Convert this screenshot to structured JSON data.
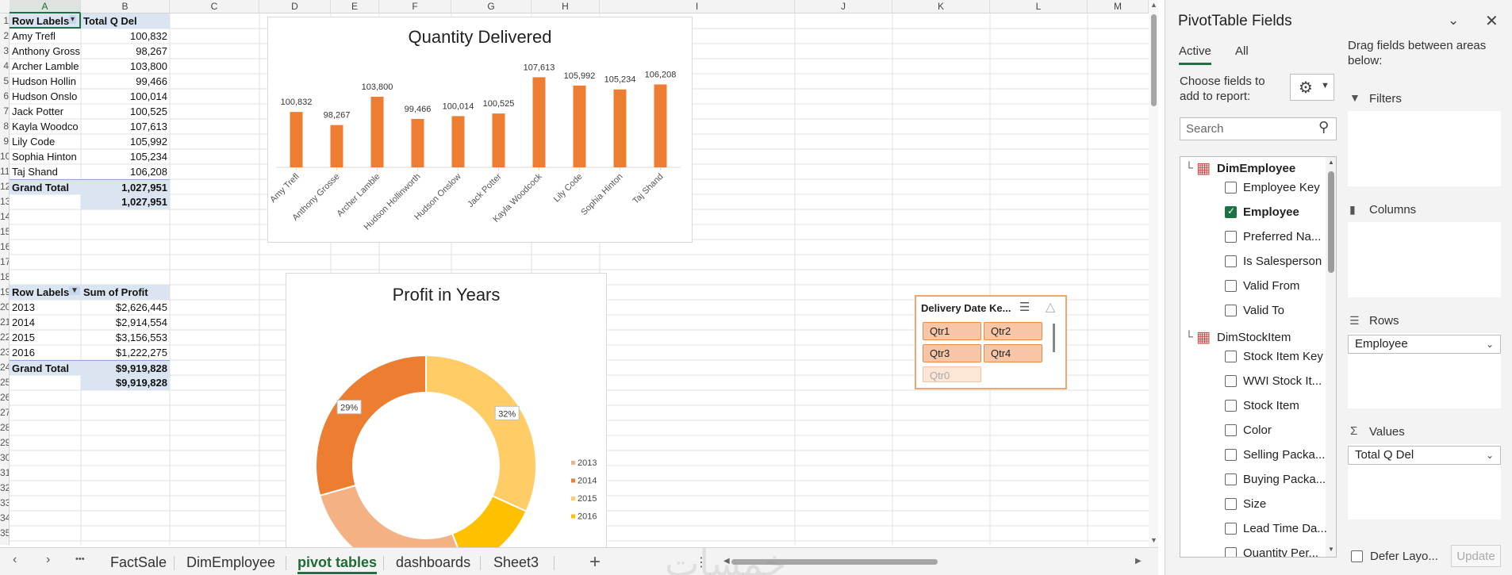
{
  "columns": [
    "A",
    "B",
    "C",
    "D",
    "E",
    "F",
    "G",
    "H",
    "I",
    "J",
    "K",
    "L",
    "M"
  ],
  "row_numbers": [
    "1",
    "2",
    "3",
    "4",
    "5",
    "6",
    "7",
    "8",
    "9",
    "10",
    "11",
    "12",
    "13",
    "14",
    "15",
    "16",
    "17",
    "18",
    "19",
    "20",
    "21",
    "22",
    "23",
    "24",
    "25",
    "26",
    "27",
    "28",
    "29",
    "30",
    "31",
    "32",
    "33",
    "34",
    "35"
  ],
  "pivot1": {
    "header_row_labels": "Row Labels",
    "header_value": "Total Q Del",
    "rows": [
      {
        "label": "Amy Trefl",
        "value": "100,832"
      },
      {
        "label": "Anthony Gross",
        "value": "98,267"
      },
      {
        "label": "Archer Lamble",
        "value": "103,800"
      },
      {
        "label": "Hudson Hollin",
        "value": "99,466"
      },
      {
        "label": "Hudson Onslo",
        "value": "100,014"
      },
      {
        "label": "Jack Potter",
        "value": "100,525"
      },
      {
        "label": "Kayla Woodco",
        "value": "107,613"
      },
      {
        "label": "Lily Code",
        "value": "105,992"
      },
      {
        "label": "Sophia Hinton",
        "value": "105,234"
      },
      {
        "label": "Taj Shand",
        "value": "106,208"
      }
    ],
    "grand_total_label": "Grand Total",
    "grand_total": "1,027,951",
    "extra_total": "1,027,951"
  },
  "pivot2": {
    "header_row_labels": "Row Labels",
    "header_value": "Sum of Profit",
    "rows": [
      {
        "label": "2013",
        "value": "$2,626,445"
      },
      {
        "label": "2014",
        "value": "$2,914,554"
      },
      {
        "label": "2015",
        "value": "$3,156,553"
      },
      {
        "label": "2016",
        "value": "$1,222,275"
      }
    ],
    "grand_total_label": "Grand Total",
    "grand_total": "$9,919,828",
    "extra_total": "$9,919,828"
  },
  "chart_data": [
    {
      "type": "bar",
      "title": "Quantity Delivered",
      "categories": [
        "Amy Trefl",
        "Anthony Grosse",
        "Archer Lamble",
        "Hudson Hollinworth",
        "Hudson Onslow",
        "Jack Potter",
        "Kayla Woodcock",
        "Lily Code",
        "Sophia Hinton",
        "Taj Shand"
      ],
      "values": [
        100832,
        98267,
        103800,
        99466,
        100014,
        100525,
        107613,
        105992,
        105234,
        106208
      ],
      "labels": [
        "100,832",
        "98,267",
        "103,800",
        "99,466",
        "100,014",
        "100,525",
        "107,613",
        "105,992",
        "105,234",
        "106,208"
      ],
      "color": "#ed7d31",
      "ylim": [
        90000,
        110000
      ]
    },
    {
      "type": "pie",
      "title": "Profit in Years",
      "categories": [
        "2013",
        "2014",
        "2015",
        "2016"
      ],
      "values": [
        2626445,
        2914554,
        3156553,
        1222275
      ],
      "colors": [
        "#f4b183",
        "#ed7d31",
        "#ffcc66",
        "#ffc000"
      ],
      "visible_labels": [
        {
          "category": "2014",
          "text": "29%"
        },
        {
          "category": "2015",
          "text": "32%"
        }
      ],
      "legend": [
        "2013",
        "2014",
        "2015",
        "2016"
      ]
    }
  ],
  "slicer": {
    "title": "Delivery Date Ke...",
    "buttons": [
      "Qtr1",
      "Qtr2",
      "Qtr3",
      "Qtr4"
    ],
    "dim_button": "Qtr0"
  },
  "sheet_tabs": {
    "tabs": [
      "FactSale",
      "DimEmployee",
      "pivot tables",
      "dashboards",
      "Sheet3"
    ],
    "active": "pivot tables",
    "more": "•••",
    "add": "+",
    "prev": "‹",
    "next": "›",
    "options": "⋮"
  },
  "watermark": "خمسات",
  "panel": {
    "title": "PivotTable Fields",
    "tab_active": "Active",
    "tab_all": "All",
    "choose_text_1": "Choose fields to",
    "choose_text_2": "add to report:",
    "search_placeholder": "Search",
    "drag_text_1": "Drag fields between areas",
    "drag_text_2": "below:",
    "tables": [
      {
        "name": "DimEmployee",
        "fields": [
          {
            "name": "Employee Key",
            "checked": false
          },
          {
            "name": "Employee",
            "checked": true
          },
          {
            "name": "Preferred Na...",
            "checked": false
          },
          {
            "name": "Is Salesperson",
            "checked": false
          },
          {
            "name": "Valid From",
            "checked": false
          },
          {
            "name": "Valid To",
            "checked": false
          }
        ]
      },
      {
        "name": "DimStockItem",
        "fields": [
          {
            "name": "Stock Item Key",
            "checked": false
          },
          {
            "name": "WWI Stock It...",
            "checked": false
          },
          {
            "name": "Stock Item",
            "checked": false
          },
          {
            "name": "Color",
            "checked": false
          },
          {
            "name": "Selling Packa...",
            "checked": false
          },
          {
            "name": "Buying Packa...",
            "checked": false
          },
          {
            "name": "Size",
            "checked": false
          },
          {
            "name": "Lead Time Da...",
            "checked": false
          },
          {
            "name": "Quantity Per...",
            "checked": false
          }
        ]
      }
    ],
    "areas": {
      "filters": "Filters",
      "columns": "Columns",
      "rows": "Rows",
      "values": "Values",
      "rows_field": "Employee",
      "values_field": "Total Q Del"
    },
    "defer_label": "Defer Layo...",
    "update_label": "Update"
  }
}
